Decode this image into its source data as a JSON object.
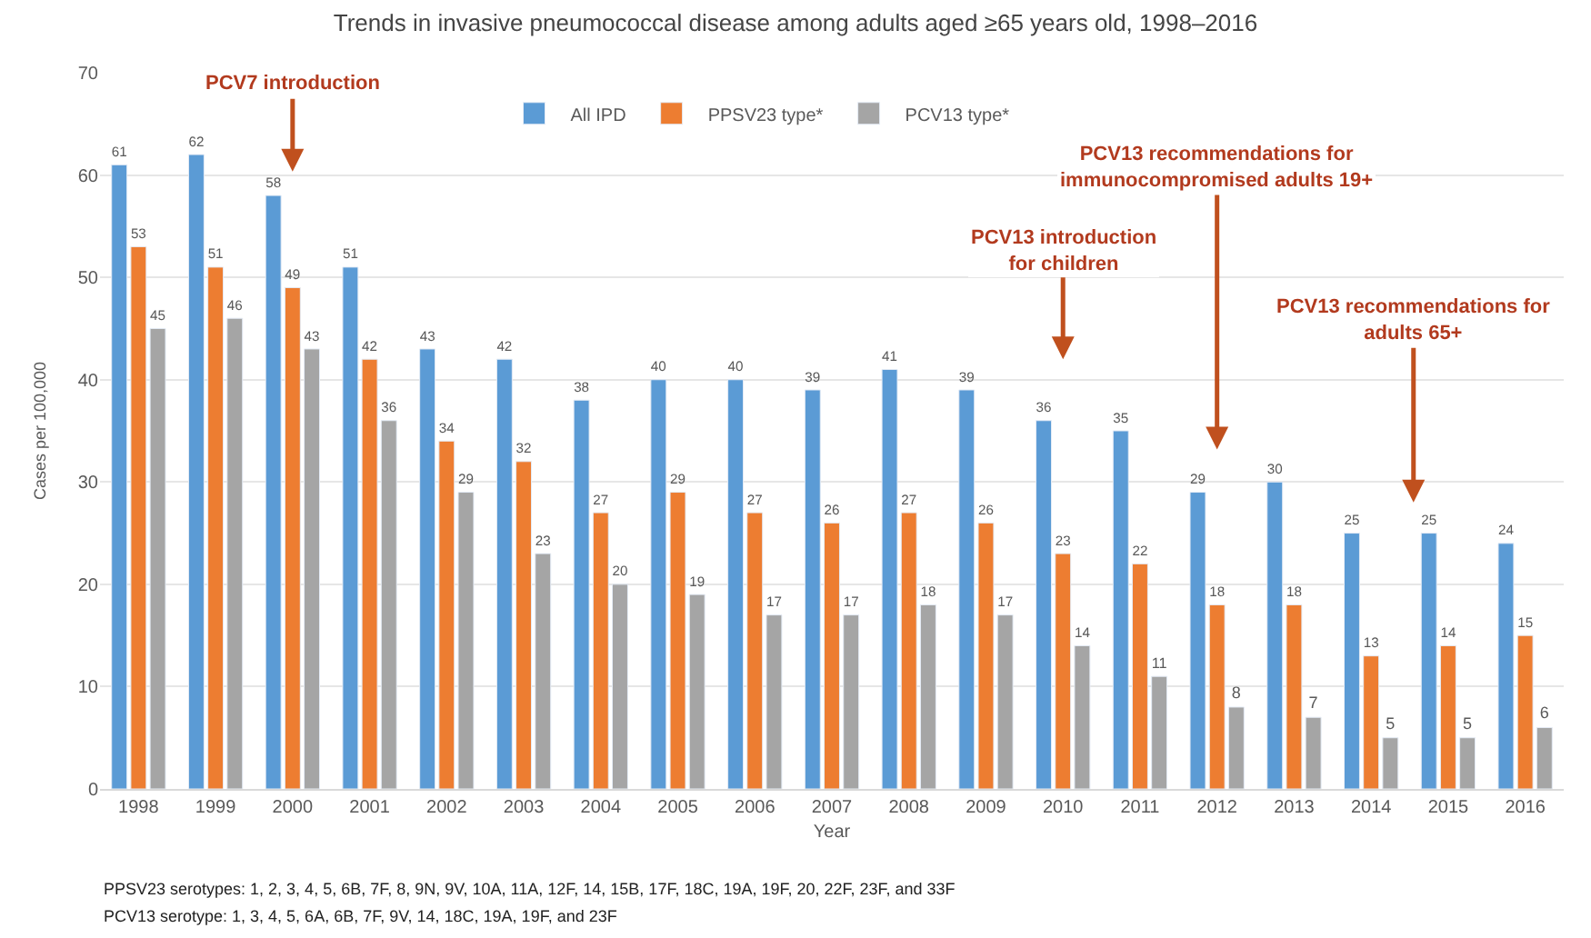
{
  "chart_data": {
    "type": "bar",
    "title": "Trends in invasive pneumococcal disease among adults aged ≥65 years old, 1998–2016",
    "xlabel": "Year",
    "ylabel": "Cases per 100,000",
    "categories": [
      "1998",
      "1999",
      "2000",
      "2001",
      "2002",
      "2003",
      "2004",
      "2005",
      "2006",
      "2007",
      "2008",
      "2009",
      "2010",
      "2011",
      "2012",
      "2013",
      "2014",
      "2015",
      "2016"
    ],
    "series": [
      {
        "name": "All IPD",
        "color": "#5b9bd5",
        "values": [
          61,
          62,
          58,
          51,
          43,
          42,
          38,
          40,
          40,
          39,
          41,
          39,
          36,
          35,
          29,
          30,
          25,
          25,
          24
        ]
      },
      {
        "name": "PPSV23 type*",
        "color": "#ed7d31",
        "values": [
          53,
          51,
          49,
          42,
          34,
          32,
          27,
          29,
          27,
          26,
          27,
          26,
          23,
          22,
          18,
          18,
          13,
          14,
          15
        ]
      },
      {
        "name": "PCV13 type*",
        "color": "#a5a5a5",
        "values": [
          45,
          46,
          43,
          36,
          29,
          23,
          20,
          19,
          17,
          17,
          18,
          17,
          14,
          11,
          8,
          7,
          5,
          5,
          6
        ]
      }
    ],
    "ylim": [
      0,
      70
    ],
    "yticks": [
      0,
      10,
      20,
      30,
      40,
      50,
      60,
      70
    ],
    "grid": "y",
    "legend": "top",
    "data_labels": true,
    "annotations": [
      "PCV7 introduction",
      "PCV13 introduction\nfor children",
      "PCV13 recommendations for\nimmunocompromised adults 19+",
      "PCV13 recommendations for\nadults 65+",
      "PPSV23 serotypes: 1, 2, 3, 4, 5, 6B, 7F, 8, 9N, 9V, 10A, 11A, 12F, 14, 15B, 17F, 18C, 19A, 19F, 20, 22F, 23F, and 33F",
      "PCV13 serotype: 1, 3, 4, 5, 6A, 6B, 7F, 9V, 14, 18C, 19A, 19F, and 23F"
    ]
  }
}
